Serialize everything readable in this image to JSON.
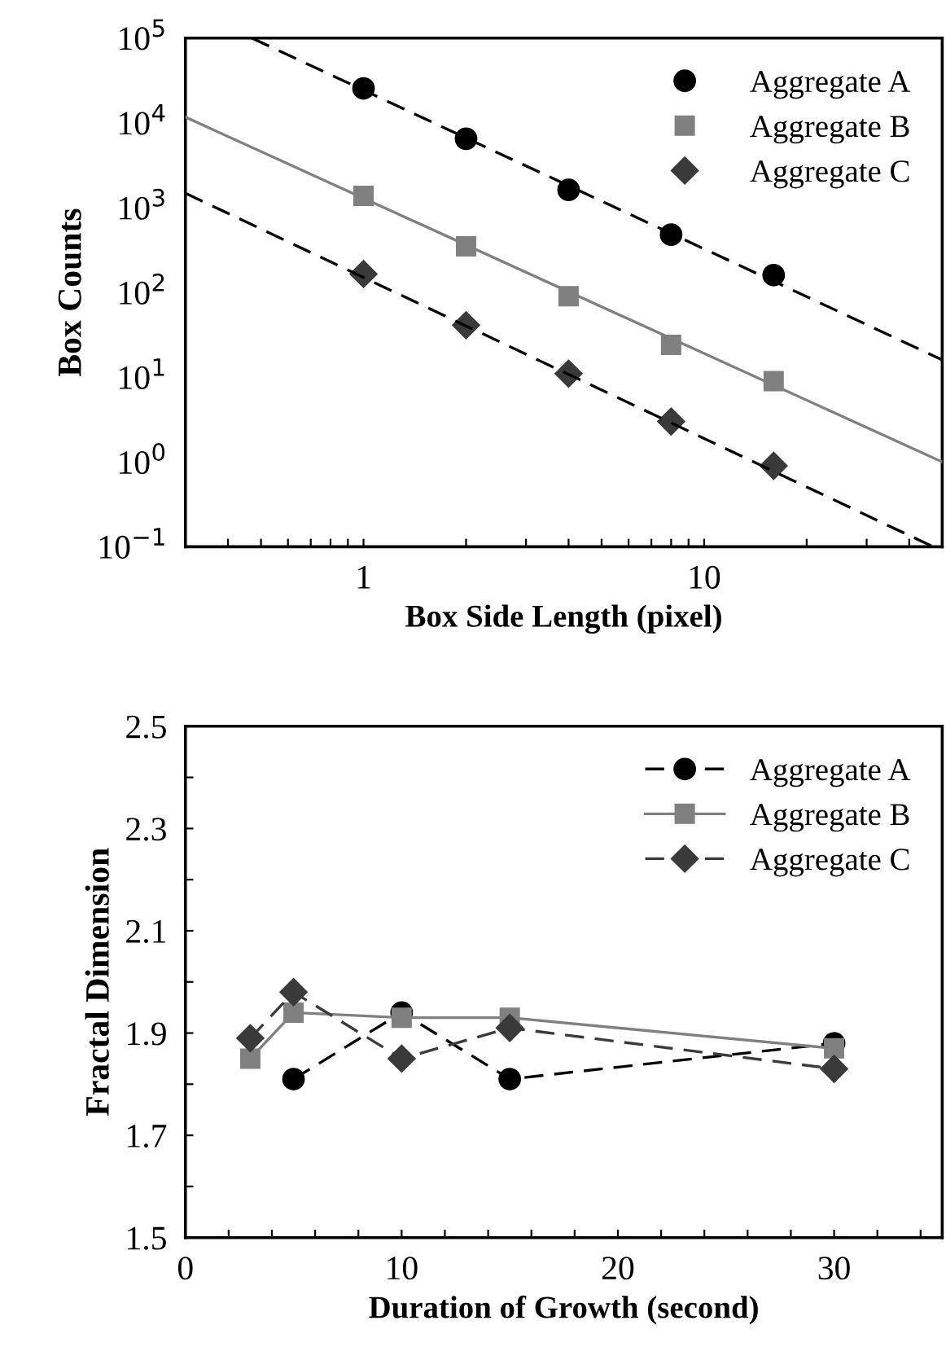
{
  "chart_data": [
    {
      "type": "scatter",
      "xlabel": "Box Side Length (pixel)",
      "ylabel": "Box Counts",
      "log": "xy",
      "xlim": [
        0.3,
        50
      ],
      "ylim": [
        0.1,
        100000
      ],
      "xticks": [
        {
          "value": 0.4,
          "label": null
        },
        {
          "value": 0.5,
          "label": null
        },
        {
          "value": 0.6,
          "label": null
        },
        {
          "value": 0.7,
          "label": null
        },
        {
          "value": 0.8,
          "label": null
        },
        {
          "value": 0.9,
          "label": null
        },
        1,
        {
          "value": 2,
          "label": null
        },
        {
          "value": 3,
          "label": null
        },
        {
          "value": 4,
          "label": null
        },
        {
          "value": 5,
          "label": null
        },
        {
          "value": 6,
          "label": null
        },
        {
          "value": 7,
          "label": null
        },
        {
          "value": 8,
          "label": null
        },
        {
          "value": 9,
          "label": null
        },
        10,
        {
          "value": 20,
          "label": null
        },
        {
          "value": 30,
          "label": null
        },
        {
          "value": 40,
          "label": null
        }
      ],
      "yticks": [
        {
          "value": 0.1,
          "label": "10$^{−1}$"
        },
        {
          "value": 1,
          "label": "10$^{0}$"
        },
        {
          "value": 10,
          "label": "10$^{1}$"
        },
        {
          "value": 100,
          "label": "10$^{2}$"
        },
        {
          "value": 1000,
          "label": "10$^{3}$"
        },
        {
          "value": 10000,
          "label": "10$^{4}$"
        },
        {
          "value": 100000,
          "label": "10$^{5}$"
        }
      ],
      "legend": "top right",
      "grid": false,
      "series": [
        {
          "name": "Aggregate A",
          "color": "#000000",
          "marker": "circle",
          "x": [
            1,
            2,
            4,
            8,
            16
          ],
          "values": [
            25500,
            6500,
            1620,
            480,
            160
          ]
        },
        {
          "name": "Aggregate B",
          "color": "#808080",
          "marker": "square",
          "x": [
            1,
            2,
            4,
            8,
            16
          ],
          "values": [
            1380,
            350,
            90,
            24,
            9
          ]
        },
        {
          "name": "Aggregate C",
          "color": "#3a3a3a",
          "marker": "diamond",
          "x": [
            1,
            2,
            4,
            8,
            16
          ],
          "values": [
            165,
            41,
            11,
            3,
            0.9
          ]
        },
        {
          "type": "line",
          "color": "#000000",
          "line_style": "dashed",
          "x": [
            0.47,
            50
          ],
          "values": [
            100000,
            16
          ]
        },
        {
          "type": "line",
          "color": "#808080",
          "line_style": "solid",
          "x": [
            0.3,
            50
          ],
          "values": [
            11700,
            1
          ]
        },
        {
          "type": "line",
          "color": "#000000",
          "line_style": "dashed",
          "x": [
            0.3,
            47
          ],
          "values": [
            1480,
            0.1
          ]
        }
      ]
    },
    {
      "type": "line",
      "xlabel": "Duration of Growth (second)",
      "ylabel": "Fractal Dimension",
      "xlim": [
        0,
        35
      ],
      "ylim": [
        1.5,
        2.5
      ],
      "xticks": [
        0,
        {
          "value": 2,
          "label": null
        },
        {
          "value": 4,
          "label": null
        },
        {
          "value": 6,
          "label": null
        },
        {
          "value": 8,
          "label": null
        },
        10,
        {
          "value": 12,
          "label": null
        },
        {
          "value": 14,
          "label": null
        },
        {
          "value": 16,
          "label": null
        },
        {
          "value": 18,
          "label": null
        },
        20,
        {
          "value": 22,
          "label": null
        },
        {
          "value": 24,
          "label": null
        },
        {
          "value": 26,
          "label": null
        },
        {
          "value": 28,
          "label": null
        },
        30,
        {
          "value": 32,
          "label": null
        },
        {
          "value": 34,
          "label": null
        }
      ],
      "yticks": [
        1.5,
        {
          "value": 1.6,
          "label": null
        },
        1.7,
        {
          "value": 1.8,
          "label": null
        },
        1.9,
        {
          "value": 2.0,
          "label": null
        },
        2.1,
        {
          "value": 2.2,
          "label": null
        },
        2.3,
        {
          "value": 2.4,
          "label": null
        },
        2.5
      ],
      "legend": "top right",
      "grid": false,
      "x": [
        3,
        5,
        10,
        15,
        30
      ],
      "series": [
        {
          "name": "Aggregate A",
          "color": "#000000",
          "marker": "circle",
          "line_style": "dashed",
          "values": [
            null,
            1.81,
            1.94,
            1.81,
            1.88
          ]
        },
        {
          "name": "Aggregate B",
          "color": "#808080",
          "marker": "square",
          "line_style": "solid",
          "values": [
            1.85,
            1.94,
            1.93,
            1.93,
            1.87
          ]
        },
        {
          "name": "Aggregate C",
          "color": "#3a3a3a",
          "marker": "diamond",
          "line_style": "dashed",
          "values": [
            1.89,
            1.98,
            1.85,
            1.91,
            1.83
          ]
        }
      ]
    }
  ]
}
